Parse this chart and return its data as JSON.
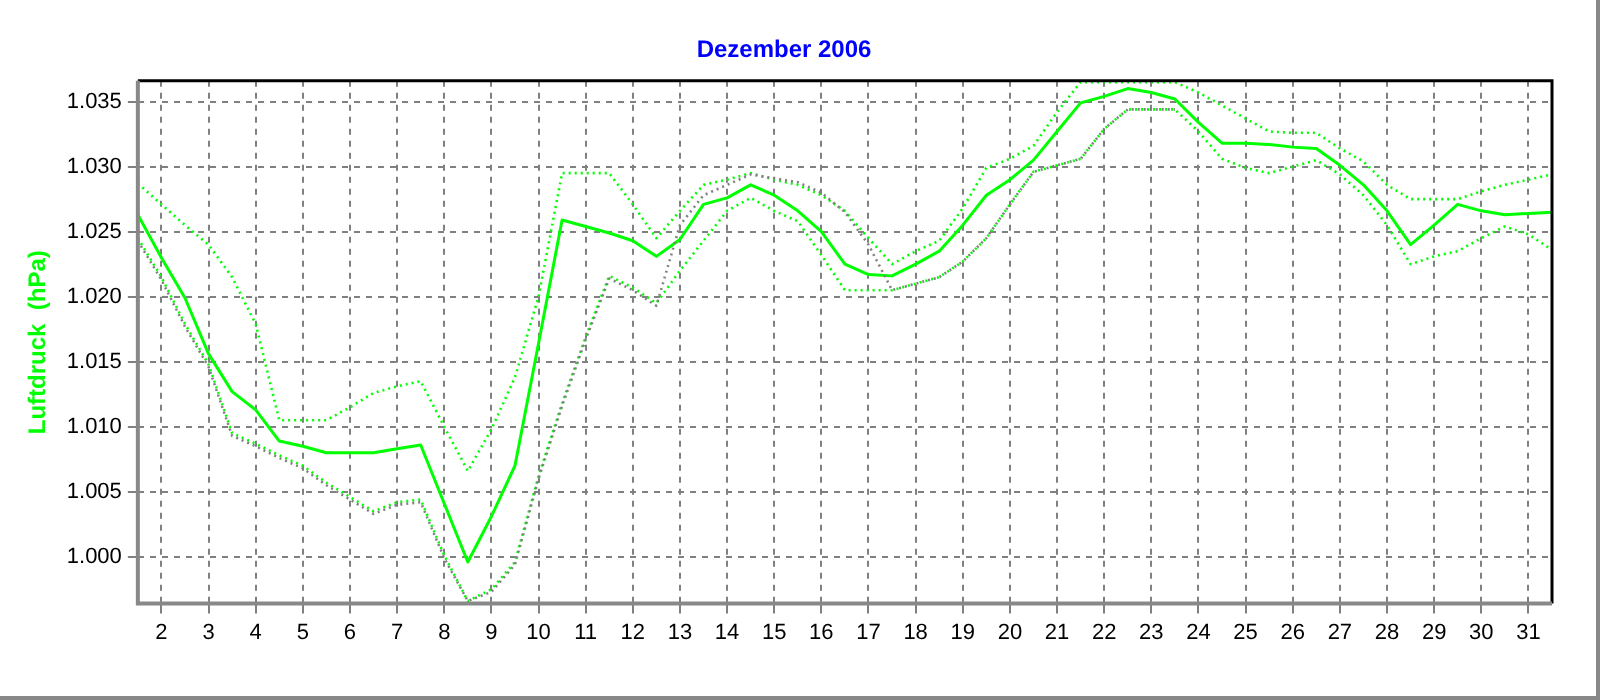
{
  "chart_data": {
    "type": "line",
    "title": "Dezember 2006",
    "ylabel": "Luftdruck  (hPa)",
    "x": [
      1.5,
      2,
      2.5,
      3,
      3.5,
      4,
      4.5,
      5,
      5.5,
      6,
      6.5,
      7,
      7.5,
      8,
      8.5,
      9,
      9.5,
      10,
      10.5,
      11,
      11.5,
      12,
      12.5,
      13,
      13.5,
      14,
      14.5,
      15,
      15.5,
      16,
      16.5,
      17,
      17.5,
      18,
      18.5,
      19,
      19.5,
      20,
      20.5,
      21,
      21.5,
      22,
      22.5,
      23,
      23.5,
      24,
      24.5,
      25,
      25.5,
      26,
      26.5,
      27,
      27.5,
      28,
      28.5,
      29,
      29.5,
      30,
      30.5,
      31,
      31.5
    ],
    "series": [
      {
        "color": "#808080",
        "line_style": "dotted",
        "values": [
          1024.3,
          1021.3,
          1017.7,
          1014.6,
          1009.3,
          1008.5,
          1007.6,
          1006.8,
          1005.5,
          1004.4,
          1003.3,
          1004.0,
          1004.2,
          999.9,
          996.6,
          997.3,
          999.4,
          1006.0,
          1011.6,
          1016.7,
          1021.4,
          1020.5,
          1019.3,
          1025.5,
          1027.8,
          1028.6,
          1029.4,
          1029.1,
          1028.8,
          1028.0,
          1026.5,
          1024.0,
          1020.5,
          1021.0,
          1021.5,
          1022.7,
          1024.5,
          1027.1,
          1029.6,
          1030.1,
          1030.6,
          1032.9,
          1034.4,
          1034.4,
          1034.4,
          null,
          null,
          null,
          null,
          null,
          null,
          null,
          null,
          null,
          null,
          null,
          null,
          null,
          null,
          null,
          null
        ]
      },
      {
        "color": "#00ff00",
        "line_style": "dotted",
        "values": [
          1024.5,
          1021.5,
          1017.9,
          1014.8,
          1009.5,
          1008.7,
          1007.8,
          1007.0,
          1005.7,
          1004.6,
          1003.5,
          1004.2,
          1004.4,
          1000.1,
          996.6,
          997.5,
          999.6,
          1006.2,
          1011.8,
          1016.9,
          1021.6,
          1020.7,
          1019.5,
          1022.0,
          1024.3,
          1026.6,
          1027.6,
          1026.6,
          1025.8,
          1023.2,
          1020.5,
          1020.5,
          1020.5,
          1021.0,
          1021.5,
          1022.7,
          1024.5,
          1027.1,
          1029.6,
          1030.1,
          1030.6,
          1032.9,
          1034.4,
          1034.4,
          1034.4,
          1032.7,
          1030.6,
          1029.9,
          1029.5,
          1030.0,
          1030.5,
          1029.4,
          1027.8,
          1025.5,
          1022.5,
          1023.1,
          1023.5,
          1024.5,
          1025.4,
          1024.8,
          1023.6
        ]
      },
      {
        "color": "#00ff00",
        "line_style": "dotted",
        "values": [
          1028.7,
          1027.1,
          1025.5,
          1024.0,
          1021.5,
          1017.9,
          1010.5,
          1010.5,
          1010.5,
          1011.5,
          1012.6,
          1013.1,
          1013.5,
          1010.0,
          1006.6,
          1009.8,
          1013.8,
          1020.0,
          1029.5,
          1029.5,
          1029.5,
          1027.1,
          1024.5,
          1026.6,
          1028.6,
          1029.0,
          1029.5,
          1029.0,
          1028.6,
          1027.8,
          1026.6,
          1024.5,
          1022.5,
          1023.5,
          1024.3,
          1026.8,
          1029.9,
          1030.6,
          1031.6,
          1034.2,
          1036.5,
          1036.5,
          1036.5,
          1036.5,
          1036.5,
          1035.7,
          1034.7,
          1033.7,
          1032.7,
          1032.6,
          1032.6,
          1031.4,
          1030.4,
          1028.6,
          1027.5,
          1027.5,
          1027.5,
          1028.1,
          1028.6,
          1029.0,
          1029.4
        ]
      },
      {
        "color": "#00ff00",
        "line_style": "solid",
        "values": [
          1026.3,
          1023.0,
          1019.9,
          1015.6,
          1012.7,
          1011.3,
          1008.9,
          1008.5,
          1008.0,
          1008.0,
          1008.0,
          1008.3,
          1008.6,
          1004.1,
          999.6,
          1003.1,
          1007.0,
          1016.4,
          1025.9,
          1025.4,
          1024.9,
          1024.3,
          1023.1,
          1024.4,
          1027.1,
          1027.6,
          1028.6,
          1027.8,
          1026.6,
          1025.0,
          1022.5,
          1021.7,
          1021.6,
          1022.5,
          1023.5,
          1025.5,
          1027.8,
          1029.0,
          1030.5,
          1032.7,
          1034.9,
          1035.4,
          1036.0,
          1035.7,
          1035.2,
          1033.4,
          1031.8,
          1031.8,
          1031.7,
          1031.5,
          1031.4,
          1030.1,
          1028.6,
          1026.6,
          1024.0,
          1025.5,
          1027.1,
          1026.6,
          1026.3,
          1026.4,
          1026.5
        ]
      }
    ],
    "xlim": [
      1.5,
      31.5
    ],
    "xticks": [
      2,
      3,
      4,
      5,
      6,
      7,
      8,
      9,
      10,
      11,
      12,
      13,
      14,
      15,
      16,
      17,
      18,
      19,
      20,
      21,
      22,
      23,
      24,
      25,
      26,
      27,
      28,
      29,
      30,
      31
    ],
    "ylim": [
      996.4,
      1036.6
    ],
    "yticks": [
      {
        "value": 1000,
        "label": "1.000"
      },
      {
        "value": 1005,
        "label": "1.005"
      },
      {
        "value": 1010,
        "label": "1.010"
      },
      {
        "value": 1015,
        "label": "1.015"
      },
      {
        "value": 1020,
        "label": "1.020"
      },
      {
        "value": 1025,
        "label": "1.025"
      },
      {
        "value": 1030,
        "label": "1.030"
      },
      {
        "value": 1035,
        "label": "1.035"
      }
    ],
    "grid": true,
    "legend": false,
    "marker": "none"
  }
}
